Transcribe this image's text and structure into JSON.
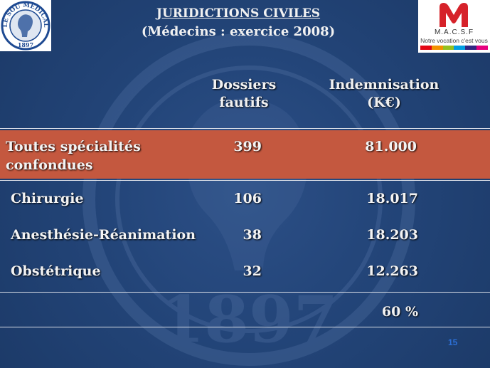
{
  "header": {
    "title": "JURIDICTIONS CIVILES",
    "subtitle": "(Médecins : exercice 2008)"
  },
  "logos": {
    "left": {
      "name": "le-sou-medical-seal",
      "text": "LE SOU MEDICAL",
      "year": "1897",
      "color": "#1e4a92"
    },
    "right": {
      "name": "macsf-logo",
      "brand": "M.A.C.S.F",
      "tagline": "Notre vocation c'est vous",
      "color": "#d6222a"
    }
  },
  "watermark": {
    "year": "1897"
  },
  "table": {
    "headers": {
      "dossiers_line1": "Dossiers",
      "dossiers_line2": "fautifs",
      "indemnisation_line1": "Indemnisation",
      "indemnisation_line2": "(K€)"
    },
    "highlight_row": {
      "label_line1": "Toutes spécialités",
      "label_line2": "confondues",
      "dossiers": "399",
      "indemnisation": "81.000",
      "background": "#c4583f"
    },
    "rows": [
      {
        "label": "Chirurgie",
        "dossiers": "106",
        "indemnisation": "18.017"
      },
      {
        "label": "Anesthésie-Réanimation",
        "dossiers": "38",
        "indemnisation": "18.203"
      },
      {
        "label": "Obstétrique",
        "dossiers": "32",
        "indemnisation": "12.263"
      }
    ],
    "total_row": {
      "indemnisation": "60 %"
    }
  },
  "footer": {
    "page_number": "15"
  },
  "colors": {
    "background": "#1f3d6e",
    "text": "#f3f3f3",
    "highlight": "#c4583f",
    "page_number": "#2c6fd6"
  }
}
